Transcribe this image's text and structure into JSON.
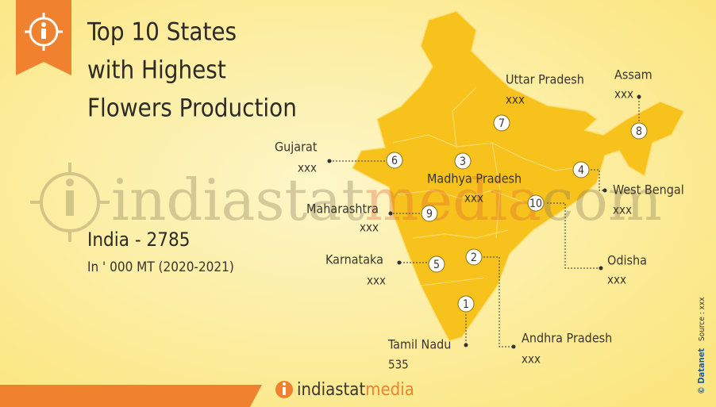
{
  "header": {
    "title_lines": [
      "Top 10 States",
      "with Highest",
      "Flowers Production"
    ]
  },
  "summary": {
    "total": "India - 2785",
    "unit": "In ' 000 MT (2020-2021)"
  },
  "states": [
    {
      "rank": 1,
      "name": "Tamil Nadu",
      "value": "535"
    },
    {
      "rank": 2,
      "name": "Andhra Pradesh",
      "value": "xxx"
    },
    {
      "rank": 3,
      "name": "Madhya Pradesh",
      "value": "xxx"
    },
    {
      "rank": 4,
      "name": "West Bengal",
      "value": "xxx"
    },
    {
      "rank": 5,
      "name": "Karnataka",
      "value": "xxx"
    },
    {
      "rank": 6,
      "name": "Gujarat",
      "value": "xxx"
    },
    {
      "rank": 7,
      "name": "Uttar Pradesh",
      "value": "xxx"
    },
    {
      "rank": 8,
      "name": "Assam",
      "value": "xxx"
    },
    {
      "rank": 9,
      "name": "Maharashtra",
      "value": "xxx"
    },
    {
      "rank": 10,
      "name": "Odisha",
      "value": "xxx"
    }
  ],
  "watermark": [
    "indiastat",
    "media",
    "com"
  ],
  "footer": {
    "brand": [
      "indiastat",
      "media"
    ],
    "source": "Source : xxx",
    "credit": "© Datanet"
  }
}
